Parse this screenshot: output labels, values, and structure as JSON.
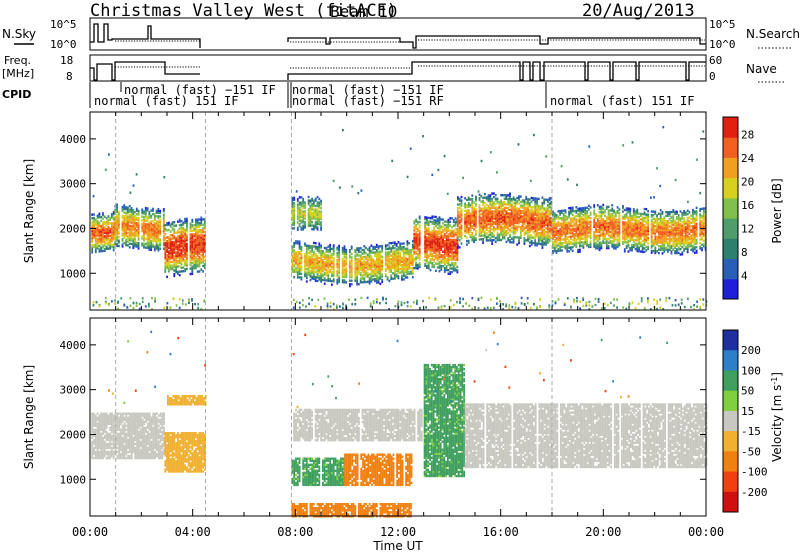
{
  "header": {
    "station": "Christmas Valley West (fitACF)",
    "beam": "Beam 10",
    "date": "20/Aug/2013"
  },
  "top_panels": {
    "nsky_label": "N.Sky",
    "nsky_ticks": [
      "10^5",
      "10^0"
    ],
    "nsearch_label": "N.Search",
    "freq_label_1": "Freq.",
    "freq_label_2": "[MHz]",
    "freq_ticks": [
      "18",
      "8"
    ],
    "nave_label": "Nave",
    "nave_ticks": [
      "60",
      "0"
    ],
    "cpid_label": "CPID",
    "cpid_entries": [
      "normal (fast) 151 IF",
      "normal (fast) −151 IF",
      "normal (fast) −151 IF",
      "normal (fast) −151 RF",
      "normal (fast) 151 IF"
    ]
  },
  "chart_data": [
    {
      "type": "heatmap",
      "title": "",
      "xlabel": "Time UT",
      "ylabel": "Slant Range [km]",
      "colorbar_label": "Power [dB]",
      "x_ticks": [
        "00:00",
        "04:00",
        "08:00",
        "12:00",
        "16:00",
        "20:00",
        "00:00"
      ],
      "x_range_hours": [
        0,
        24
      ],
      "ylim": [
        180,
        4600
      ],
      "y_ticks": [
        1000,
        2000,
        3000,
        4000
      ],
      "colorbar_ticks": [
        4,
        8,
        12,
        16,
        20,
        24,
        28
      ],
      "colorbar_range": [
        0,
        31
      ],
      "data_gaps_hours": [
        [
          4.5,
          7.85
        ]
      ],
      "echo_bands": [
        {
          "t_start": 0.05,
          "t_end": 0.95,
          "center_km": 1900,
          "halfwidth_km": 300,
          "peak_db": 26
        },
        {
          "t_start": 0.95,
          "t_end": 2.9,
          "center_km": 2050,
          "halfwidth_km": 330,
          "peak_db": 24
        },
        {
          "t_start": 2.9,
          "t_end": 4.5,
          "center_km": 1600,
          "halfwidth_km": 420,
          "peak_db": 28
        },
        {
          "t_start": 7.85,
          "t_end": 9.0,
          "center_km": 2300,
          "halfwidth_km": 260,
          "peak_db": 18
        },
        {
          "t_start": 7.85,
          "t_end": 12.6,
          "center_km": 1250,
          "halfwidth_km": 300,
          "peak_db": 22
        },
        {
          "t_start": 12.6,
          "t_end": 14.3,
          "center_km": 1700,
          "halfwidth_km": 420,
          "peak_db": 28
        },
        {
          "t_start": 14.3,
          "t_end": 18.0,
          "center_km": 2200,
          "halfwidth_km": 380,
          "peak_db": 26
        },
        {
          "t_start": 18.0,
          "t_end": 24.0,
          "center_km": 2000,
          "halfwidth_km": 340,
          "peak_db": 25
        }
      ]
    },
    {
      "type": "heatmap",
      "title": "",
      "xlabel": "Time UT",
      "ylabel": "Slant Range [km]",
      "colorbar_label": "Velocity [m s^-1]",
      "x_ticks": [
        "00:00",
        "04:00",
        "08:00",
        "12:00",
        "16:00",
        "20:00",
        "00:00"
      ],
      "x_range_hours": [
        0,
        24
      ],
      "ylim": [
        180,
        4600
      ],
      "y_ticks": [
        1000,
        2000,
        3000,
        4000
      ],
      "colorbar_ticks": [
        200,
        100,
        50,
        15,
        -15,
        -50,
        -100,
        -200
      ],
      "data_gaps_hours": [
        [
          4.5,
          7.85
        ]
      ],
      "velocity_regions": [
        {
          "t_start": 0.05,
          "t_end": 2.9,
          "range_km": [
            1500,
            2500
          ],
          "velocity": 0
        },
        {
          "t_start": 2.9,
          "t_end": 4.5,
          "range_km": [
            1200,
            2100
          ],
          "velocity": -40
        },
        {
          "t_start": 3.0,
          "t_end": 4.5,
          "range_km": [
            2700,
            2900
          ],
          "velocity": -40
        },
        {
          "t_start": 7.85,
          "t_end": 13.0,
          "range_km": [
            1900,
            2600
          ],
          "velocity": 0
        },
        {
          "t_start": 7.85,
          "t_end": 9.9,
          "range_km": [
            900,
            1500
          ],
          "velocity": 40
        },
        {
          "t_start": 9.9,
          "t_end": 12.5,
          "range_km": [
            900,
            1600
          ],
          "velocity": -60
        },
        {
          "t_start": 7.85,
          "t_end": 12.5,
          "range_km": [
            200,
            500
          ],
          "velocity": -60
        },
        {
          "t_start": 13.0,
          "t_end": 14.6,
          "range_km": [
            1100,
            3600
          ],
          "velocity": 40
        },
        {
          "t_start": 14.6,
          "t_end": 24.0,
          "range_km": [
            1300,
            2700
          ],
          "velocity": 0
        }
      ]
    }
  ]
}
